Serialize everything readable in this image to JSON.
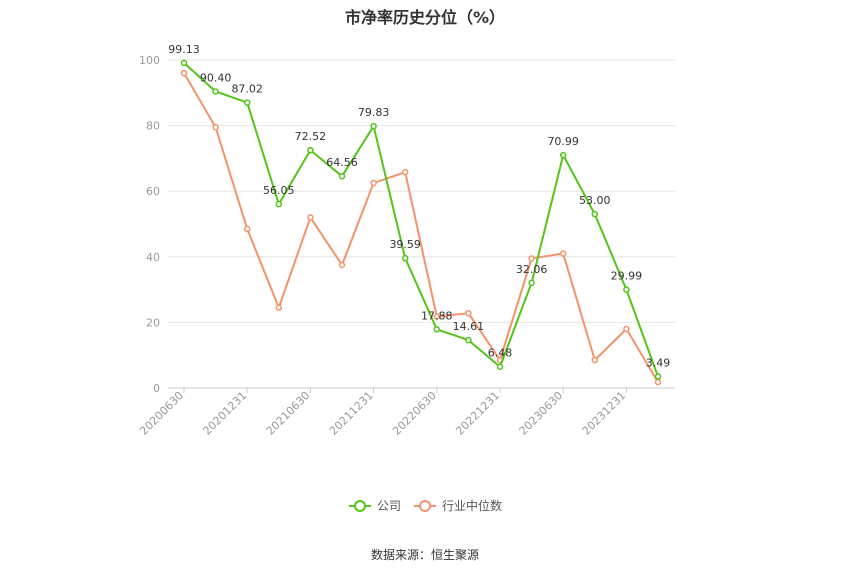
{
  "chart_data": {
    "type": "line",
    "title": "市净率历史分位（%）",
    "xlabel": "",
    "ylabel": "",
    "ylim": [
      0,
      100
    ],
    "yticks": [
      0,
      20,
      40,
      60,
      80,
      100
    ],
    "x": [
      "20200630",
      "20200930",
      "20201231",
      "20210331",
      "20210630",
      "20210930",
      "20211231",
      "20220331",
      "20220630",
      "20220930",
      "20221231",
      "20230331",
      "20230630",
      "20230930",
      "20231231",
      "20240331"
    ],
    "xtick_labels": [
      "20200630",
      "20201231",
      "20210630",
      "20211231",
      "20220630",
      "20221231",
      "20230630",
      "20231231"
    ],
    "series": [
      {
        "name": "公司",
        "color": "#52c41a",
        "values": [
          99.13,
          90.4,
          87.02,
          56.05,
          72.52,
          64.56,
          79.83,
          39.59,
          17.88,
          14.61,
          6.48,
          32.06,
          70.99,
          53.0,
          29.99,
          3.49
        ],
        "labels": [
          "99.13",
          "90.40",
          "87.02",
          "56.05",
          "72.52",
          "64.56",
          "79.83",
          "39.59",
          "17.88",
          "14.61",
          "6.48",
          "32.06",
          "70.99",
          "53.00",
          "29.99",
          "3.49"
        ]
      },
      {
        "name": "行业中位数",
        "color": "#f4926b",
        "values": [
          96.0,
          79.5,
          48.5,
          24.5,
          52.0,
          37.5,
          62.5,
          65.8,
          21.8,
          22.8,
          8.5,
          39.5,
          41.0,
          8.5,
          18.0,
          1.8
        ]
      }
    ],
    "grid": true,
    "legend_position": "bottom"
  },
  "footer": {
    "source": "数据来源：恒生聚源"
  }
}
